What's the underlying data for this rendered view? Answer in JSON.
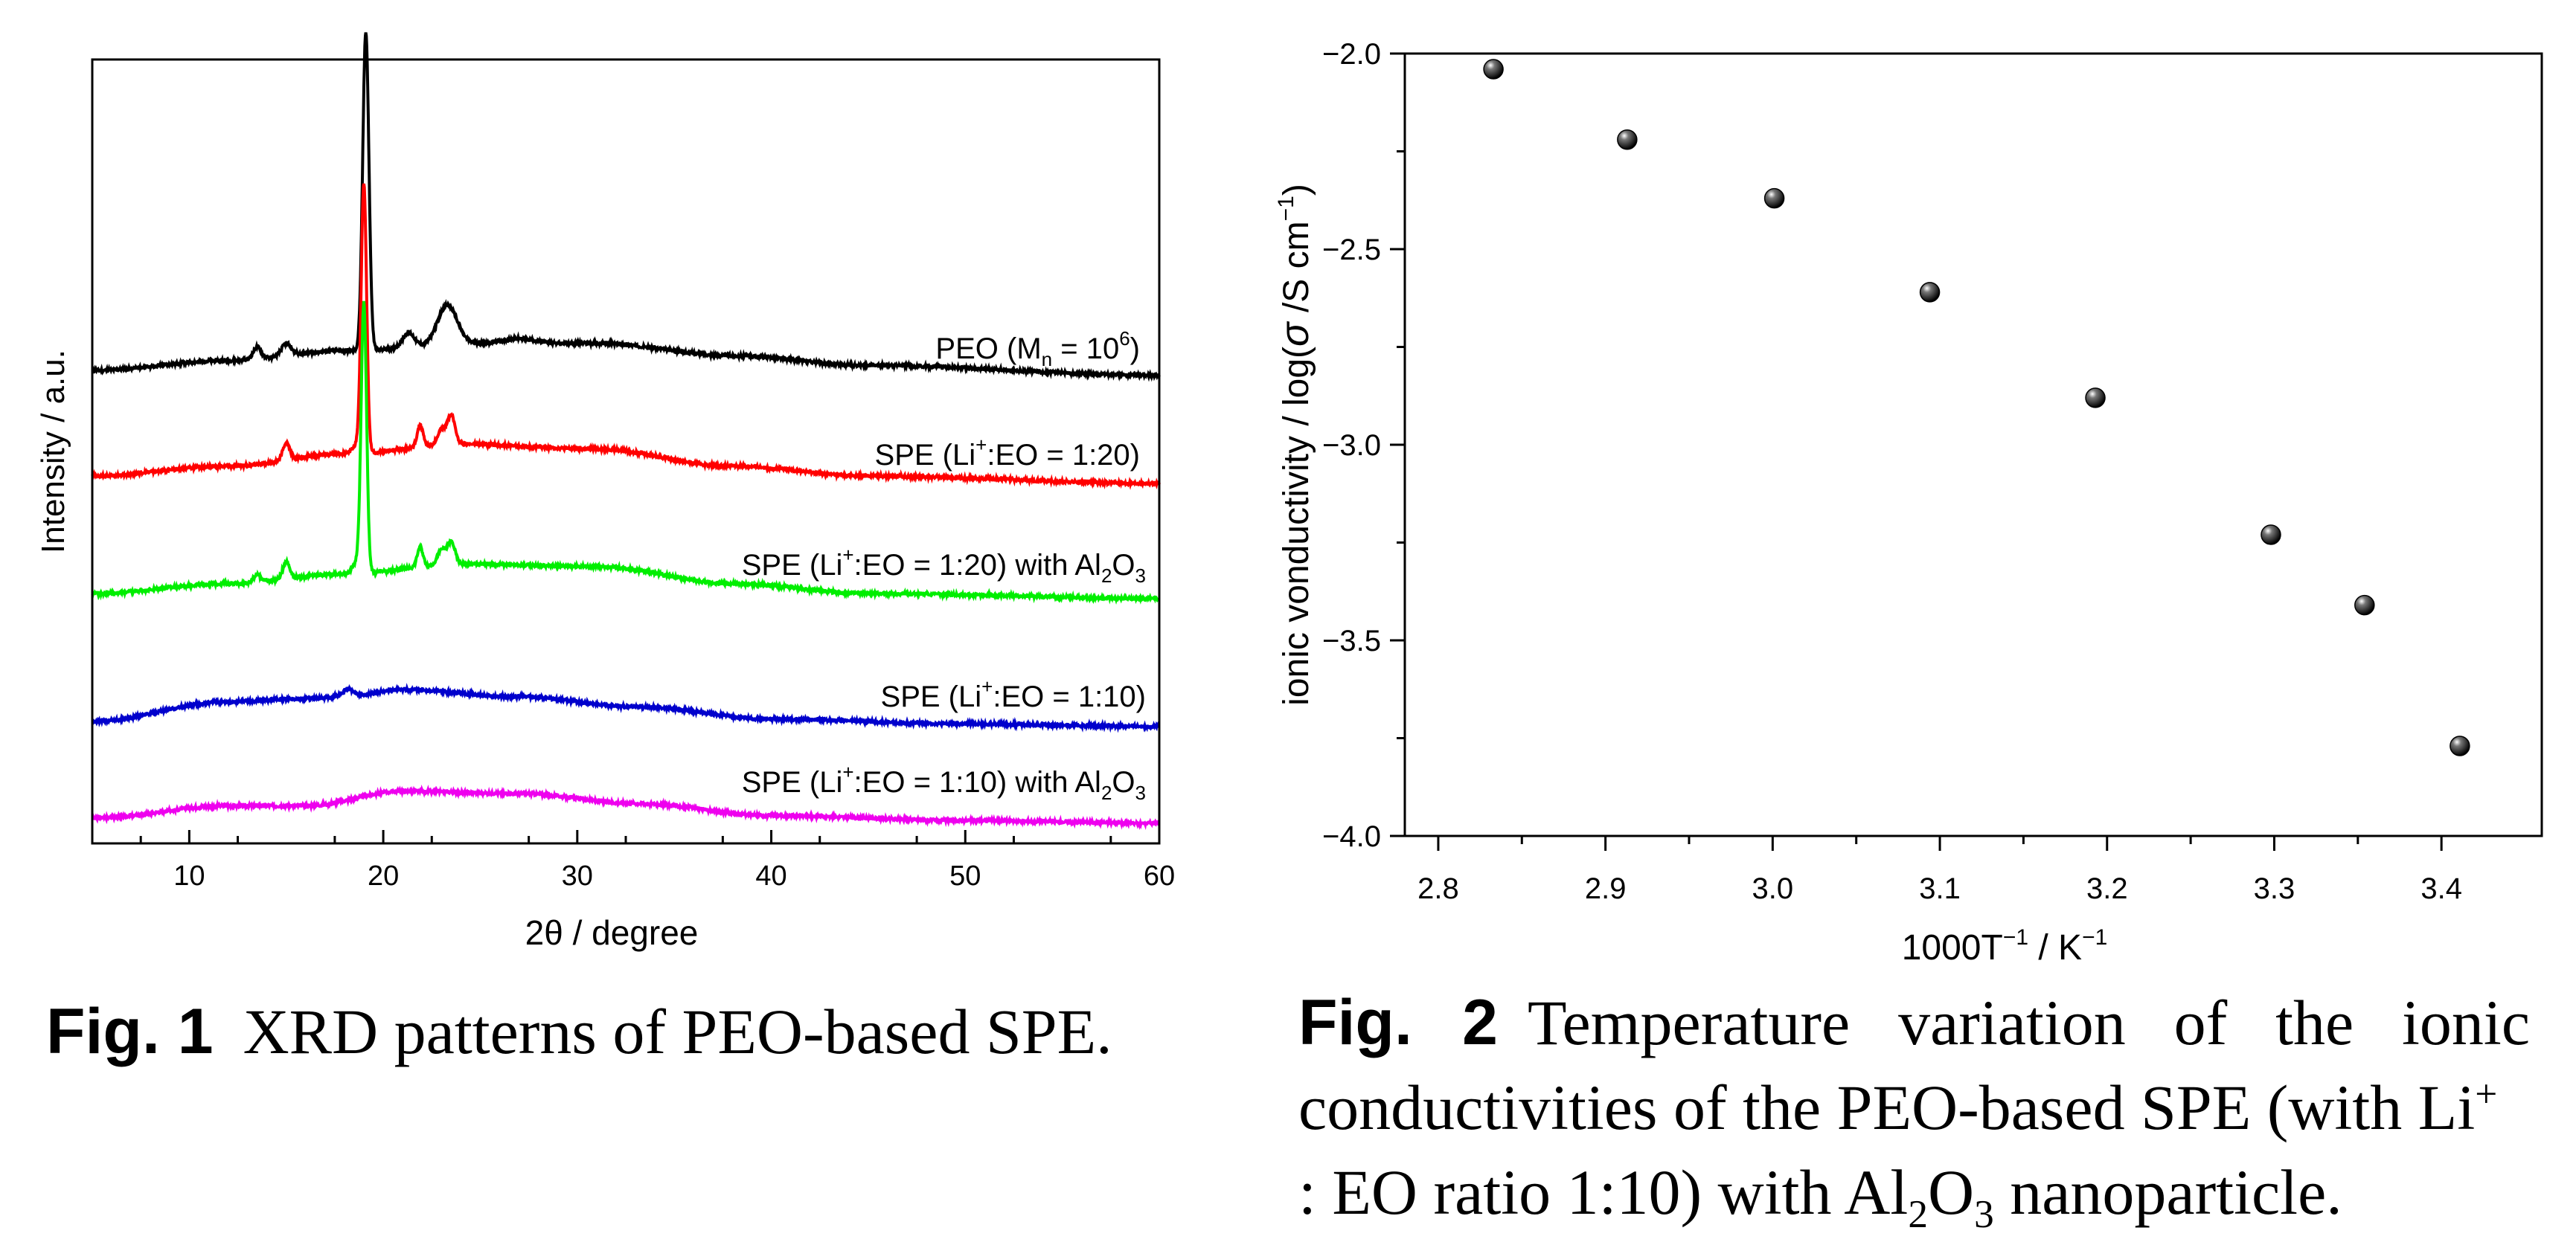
{
  "figure1": {
    "chart_data": {
      "type": "line",
      "title": "",
      "xlabel": "2θ / degree",
      "ylabel": "Intensity / a.u.",
      "xlim": [
        5,
        60
      ],
      "xticks": [
        10,
        20,
        30,
        40,
        50,
        60
      ],
      "y_units": "arbitrary (stacked, offset traces)",
      "series": [
        {
          "name": "PEO (Mn = 10^6)",
          "label_main": "PEO (M",
          "label_sub": "n",
          "label_mid": " = 10",
          "label_sup": "6",
          "label_end": ")",
          "color": "#000000",
          "baseline": [
            [
              5,
              0.0
            ],
            [
              12,
              0.04
            ],
            [
              18,
              0.08
            ],
            [
              25,
              0.11
            ],
            [
              31,
              0.11
            ],
            [
              38,
              0.06
            ],
            [
              45,
              0.02
            ],
            [
              60,
              -0.02
            ]
          ],
          "peaks": [
            [
              13.5,
              0.05,
              0.2
            ],
            [
              15.0,
              0.05,
              0.25
            ],
            [
              19.1,
              1.3,
              0.16
            ],
            [
              21.3,
              0.06,
              0.3
            ],
            [
              23.3,
              0.16,
              0.5
            ],
            [
              27.0,
              0.02,
              0.8
            ]
          ]
        },
        {
          "name": "SPE (Li+:EO = 1:20)",
          "label_main": "SPE (Li",
          "label_sup": "+",
          "label_end": ":EO = 1:20)",
          "color": "#ff0000",
          "baseline": [
            [
              5,
              0.0
            ],
            [
              12,
              0.04
            ],
            [
              18,
              0.09
            ],
            [
              24,
              0.13
            ],
            [
              31,
              0.11
            ],
            [
              38,
              0.04
            ],
            [
              45,
              0.0
            ],
            [
              60,
              -0.03
            ]
          ],
          "peaks": [
            [
              15.0,
              0.07,
              0.18
            ],
            [
              18.7,
              0.04,
              0.25
            ],
            [
              19.0,
              1.08,
              0.14
            ],
            [
              21.9,
              0.09,
              0.15
            ],
            [
              23.0,
              0.06,
              0.2
            ],
            [
              23.5,
              0.12,
              0.2
            ]
          ]
        },
        {
          "name": "SPE (Li+:EO = 1:20) with Al2O3",
          "label_main": "SPE (Li",
          "label_sup": "+",
          "label_mid": ":EO = 1:20) with Al",
          "label_sub": "2",
          "label_mid2": "O",
          "label_sub2": "3",
          "color": "#00ee00",
          "baseline": [
            [
              5,
              0.0
            ],
            [
              12,
              0.04
            ],
            [
              18,
              0.08
            ],
            [
              24,
              0.12
            ],
            [
              31,
              0.11
            ],
            [
              38,
              0.04
            ],
            [
              45,
              0.0
            ],
            [
              60,
              -0.02
            ]
          ],
          "peaks": [
            [
              13.5,
              0.03,
              0.2
            ],
            [
              15.0,
              0.07,
              0.18
            ],
            [
              18.7,
              0.05,
              0.25
            ],
            [
              19.0,
              1.08,
              0.14
            ],
            [
              21.9,
              0.08,
              0.15
            ],
            [
              23.0,
              0.06,
              0.2
            ],
            [
              23.5,
              0.09,
              0.2
            ]
          ]
        },
        {
          "name": "SPE (Li+:EO = 1:10)",
          "label_main": "SPE (Li",
          "label_sup": "+",
          "label_end": ":EO = 1:10)",
          "color": "#0000cc",
          "baseline": [
            [
              5,
              0.0
            ],
            [
              12,
              0.08
            ],
            [
              15,
              0.09
            ],
            [
              18,
              0.1
            ],
            [
              21,
              0.13
            ],
            [
              27,
              0.1
            ],
            [
              33,
              0.06
            ],
            [
              40,
              0.01
            ],
            [
              50,
              -0.01
            ],
            [
              60,
              -0.02
            ]
          ],
          "peaks": [
            [
              18.2,
              0.03,
              0.3
            ]
          ]
        },
        {
          "name": "SPE (Li+:EO = 1:10) with Al2O3",
          "label_main": "SPE (Li",
          "label_sup": "+",
          "label_mid": ":EO = 1:10) with Al",
          "label_sub": "2",
          "label_mid2": "O",
          "label_sub2": "3",
          "color": "#ee00ee",
          "baseline": [
            [
              5,
              0.0
            ],
            [
              12,
              0.05
            ],
            [
              16,
              0.05
            ],
            [
              21,
              0.11
            ],
            [
              27,
              0.1
            ],
            [
              33,
              0.06
            ],
            [
              40,
              0.01
            ],
            [
              50,
              -0.01
            ],
            [
              60,
              -0.02
            ]
          ],
          "peaks": []
        }
      ]
    },
    "caption": {
      "label": "Fig. 1",
      "text": "XRD patterns of PEO-based SPE."
    }
  },
  "figure2": {
    "chart_data": {
      "type": "scatter",
      "title": "",
      "xlabel_main": "1000T",
      "xlabel_sup1": "−1",
      "xlabel_mid": " / K",
      "xlabel_sup2": "−1",
      "xlabel": "1000T⁻¹ / K⁻¹",
      "ylabel_main": "ionic vonductivity / log(",
      "ylabel_sigma": "σ",
      "ylabel_mid": " /S cm",
      "ylabel_sup": "−1",
      "ylabel_end": ")",
      "ylabel": "ionic vonductivity / log(σ /S cm⁻¹)",
      "xlim": [
        2.78,
        3.46
      ],
      "ylim": [
        -4.0,
        -2.0
      ],
      "xticks": [
        2.8,
        2.9,
        3.0,
        3.1,
        3.2,
        3.3,
        3.4
      ],
      "yticks": [
        -2.0,
        -2.5,
        -3.0,
        -3.5,
        -4.0
      ],
      "xtick_labels": [
        "2.8",
        "2.9",
        "3.0",
        "3.1",
        "3.2",
        "3.3",
        "3.4"
      ],
      "ytick_labels": [
        "−2.0",
        "−2.5",
        "−3.0",
        "−3.5",
        "−4.0"
      ],
      "x": [
        2.833,
        2.913,
        3.001,
        3.094,
        3.193,
        3.298,
        3.354,
        3.411
      ],
      "y": [
        -2.04,
        -2.22,
        -2.37,
        -2.61,
        -2.88,
        -3.23,
        -3.41,
        -3.77
      ]
    },
    "caption": {
      "label": "Fig. 2",
      "text_part1": "Temperature variation of the ionic conductivities of the PEO-based SPE (with Li",
      "text_sup": "+",
      "text_part2": ": EO ratio 1:10) with Al",
      "text_sub1": "2",
      "text_part3": "O",
      "text_sub2": "3",
      "text_part4": " nanoparticle."
    }
  }
}
